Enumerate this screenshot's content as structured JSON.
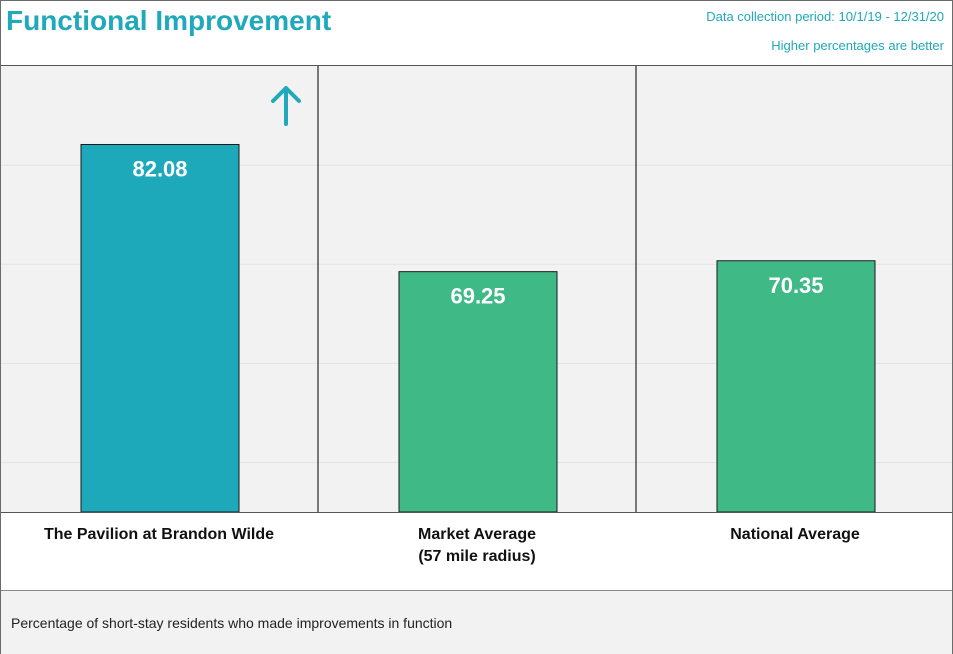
{
  "header": {
    "title": "Functional Improvement",
    "period": "Data collection period: 10/1/19 - 12/31/20",
    "hint": "Higher percentages are better"
  },
  "footer": {
    "note": "Percentage of short-stay residents who made improvements  in function"
  },
  "chart_data": {
    "type": "bar",
    "categories": [
      "The Pavilion at Brandon Wilde",
      "Market Average\n(57 mile radius)",
      "National Average"
    ],
    "values": [
      82.08,
      69.25,
      70.35
    ],
    "data_labels": [
      "82.08",
      "69.25",
      "70.35"
    ],
    "ylim": [
      45,
      90
    ],
    "grid": true,
    "indicator": "up-arrow-icon",
    "colors": {
      "facility": "#1ea9ba",
      "comparison": "#3fb985",
      "bar_edge": "#1a1a1a",
      "label": "#ffffff",
      "arrow": "#1fa9bb",
      "gridline": "#e3e3e3",
      "divider": "#000000"
    }
  }
}
